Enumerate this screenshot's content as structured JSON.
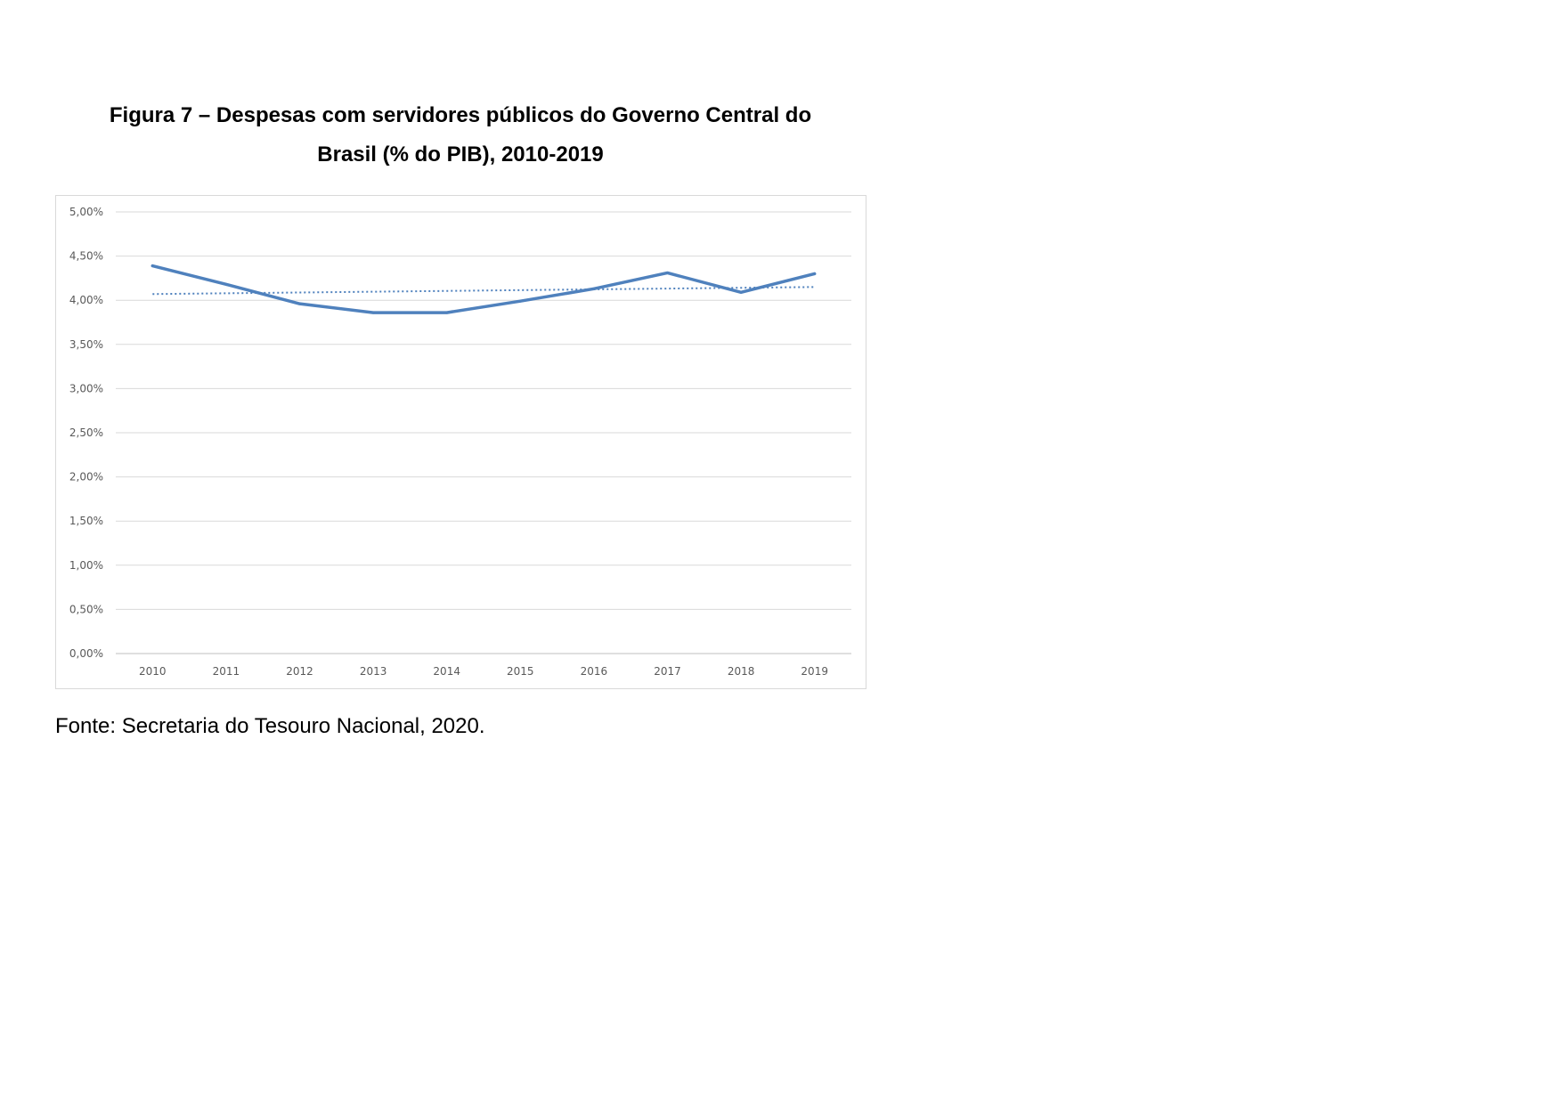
{
  "figure": {
    "title_line1": "Figura 7 – Despesas com servidores públicos do Governo Central do",
    "title_line2": "Brasil (% do PIB), 2010-2019",
    "source": "Fonte: Secretaria do Tesouro Nacional, 2020."
  },
  "chart_data": {
    "type": "line",
    "title": "",
    "xlabel": "",
    "ylabel": "",
    "categories": [
      "2010",
      "2011",
      "2012",
      "2013",
      "2014",
      "2015",
      "2016",
      "2017",
      "2018",
      "2019"
    ],
    "series": [
      {
        "values": [
          4.39,
          4.18,
          3.96,
          3.86,
          3.86,
          3.99,
          4.13,
          4.31,
          4.09,
          4.3
        ],
        "color": "#4f81bd",
        "style": "solid"
      }
    ],
    "trendline": {
      "kind": "linear",
      "start": 4.07,
      "end": 4.15,
      "color": "#4f81bd",
      "style": "dotted"
    },
    "y_ticks": [
      "0,00%",
      "0,50%",
      "1,00%",
      "1,50%",
      "2,00%",
      "2,50%",
      "3,00%",
      "3,50%",
      "4,00%",
      "4,50%",
      "5,00%"
    ],
    "ylim": [
      0,
      5
    ],
    "grid": true,
    "legend": "none"
  }
}
